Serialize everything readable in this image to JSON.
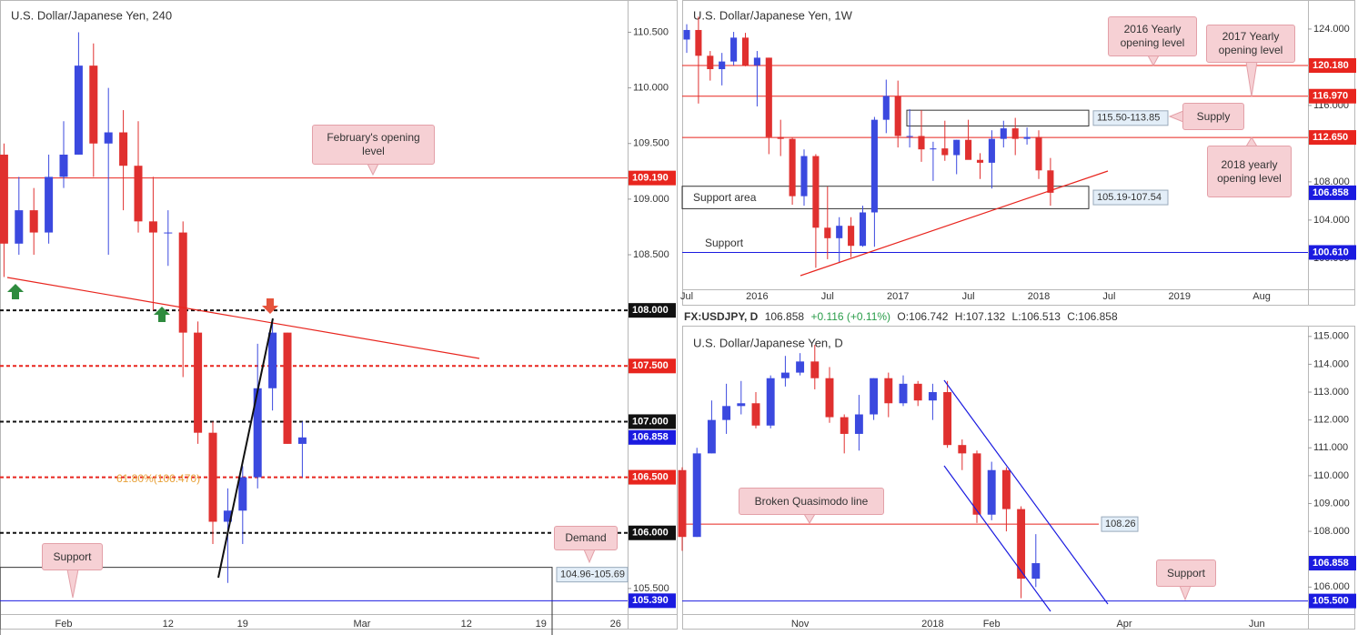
{
  "legend_bar": {
    "symbol": "FX:USDJPY, D",
    "price": "106.858",
    "change": "+0.116 (+0.11%)",
    "open": "O:106.742",
    "high": "H:107.132",
    "low": "L:106.513",
    "close": "C:106.858"
  },
  "chart_data": [
    {
      "type": "candlestick",
      "title": "U.S. Dollar/Japanese Yen, 240",
      "up_color": "#3b49df",
      "down_color": "#e0302f",
      "grid": false,
      "categories": [
        null,
        null,
        null,
        null,
        "Feb",
        null,
        null,
        null,
        null,
        null,
        null,
        "12",
        null,
        null,
        null,
        null,
        "19",
        null,
        null,
        null,
        null,
        null,
        null,
        null,
        "Mar",
        null,
        null,
        null,
        null,
        null,
        null,
        "12",
        null,
        null,
        null,
        null,
        "19",
        null,
        null,
        null,
        null,
        "26"
      ],
      "open": [
        109.4,
        108.6,
        108.9,
        108.7,
        109.2,
        109.4,
        110.2,
        109.5,
        109.6,
        109.3,
        108.8,
        108.7,
        108.7,
        107.8,
        106.9,
        106.1,
        106.2,
        106.5,
        107.3,
        107.8,
        106.8,
        null,
        null,
        null,
        null,
        null,
        null,
        null,
        null,
        null,
        null,
        null,
        null,
        null,
        null,
        null,
        null,
        null,
        null,
        null,
        null,
        null
      ],
      "high": [
        109.5,
        109.2,
        109.1,
        109.4,
        109.7,
        110.5,
        110.4,
        110.0,
        109.8,
        109.7,
        109.2,
        108.9,
        108.8,
        107.9,
        107.0,
        106.4,
        106.6,
        107.7,
        107.9,
        107.8,
        107.0,
        null,
        null,
        null,
        null,
        null,
        null,
        null,
        null,
        null,
        null,
        null,
        null,
        null,
        null,
        null,
        null,
        null,
        null,
        null,
        null,
        null
      ],
      "low": [
        108.3,
        108.5,
        108.5,
        108.6,
        109.1,
        109.4,
        109.2,
        108.5,
        108.9,
        108.7,
        108.0,
        108.4,
        107.4,
        106.8,
        105.9,
        105.55,
        105.9,
        106.4,
        107.1,
        106.8,
        106.5,
        null,
        null,
        null,
        null,
        null,
        null,
        null,
        null,
        null,
        null,
        null,
        null,
        null,
        null,
        null,
        null,
        null,
        null,
        null,
        null,
        null
      ],
      "close": [
        108.6,
        108.9,
        108.7,
        109.2,
        109.4,
        110.2,
        109.5,
        109.6,
        109.3,
        108.8,
        108.7,
        108.7,
        107.8,
        106.9,
        106.1,
        106.2,
        106.5,
        107.3,
        107.8,
        106.8,
        106.858,
        null,
        null,
        null,
        null,
        null,
        null,
        null,
        null,
        null,
        null,
        null,
        null,
        null,
        null,
        null,
        null,
        null,
        null,
        null,
        null,
        null
      ],
      "ylim": [
        105.27,
        110.79
      ],
      "yticks": [
        {
          "value": 110.5,
          "label": "110.500"
        },
        {
          "value": 110,
          "label": "110.000"
        },
        {
          "value": 109.5,
          "label": "109.500"
        },
        {
          "value": 109,
          "label": "109.000"
        },
        {
          "value": 108.5,
          "label": "108.500"
        },
        {
          "value": 105.5,
          "label": "105.500"
        }
      ],
      "levels": [
        {
          "value": 109.19,
          "label": "109.190",
          "color": "#e8251e",
          "style": "solid"
        },
        {
          "value": 108,
          "label": "108.000",
          "color": "#111111",
          "style": "dashed"
        },
        {
          "value": 107.5,
          "label": "107.500",
          "color": "#e8251e",
          "style": "dashed"
        },
        {
          "value": 107,
          "label": "107.000",
          "color": "#111111",
          "style": "dashed"
        },
        {
          "value": 106.858,
          "label": "106.858",
          "color": "#1b1be0",
          "style": "none"
        },
        {
          "value": 106.5,
          "label": "106.500",
          "color": "#e8251e",
          "style": "dashed"
        },
        {
          "value": 106,
          "label": "106.000",
          "color": "#111111",
          "style": "dashed"
        },
        {
          "value": 105.39,
          "label": "105.390",
          "color": "#1b1be0",
          "style": "solid"
        }
      ],
      "zones": [
        {
          "low": 104.96,
          "high": 105.69,
          "label": "104.96-105.69"
        }
      ],
      "fib_label": "61.80%(106.470)",
      "annotations": [
        "February's opening level",
        "Demand",
        "Support"
      ]
    },
    {
      "type": "candlestick",
      "title": "U.S. Dollar/Japanese Yen, 1W",
      "up_color": "#3b49df",
      "down_color": "#e0302f",
      "grid": false,
      "categories": [
        "Jul",
        null,
        null,
        null,
        null,
        null,
        "2016",
        null,
        null,
        null,
        null,
        null,
        "Jul",
        null,
        null,
        null,
        null,
        null,
        "2017",
        null,
        null,
        null,
        null,
        null,
        "Jul",
        null,
        null,
        null,
        null,
        null,
        "2018",
        null,
        null,
        null,
        null,
        null,
        "Jul",
        null,
        null,
        null,
        null,
        null,
        "2019",
        null,
        null,
        null,
        null,
        null,
        null,
        "Aug"
      ],
      "open": [
        122.9,
        123.9,
        121.2,
        119.8,
        120.6,
        123.1,
        120.2,
        121.0,
        112.7,
        112.5,
        106.5,
        110.7,
        103.2,
        102.1,
        103.4,
        101.3,
        104.8,
        114.5,
        117.0,
        112.8,
        112.8,
        111.4,
        111.5,
        110.8,
        112.4,
        110.3,
        110.0,
        112.5,
        113.6,
        112.5,
        112.7,
        109.2,
        null,
        null,
        null,
        null,
        null,
        null,
        null,
        null,
        null,
        null,
        null,
        null,
        null,
        null,
        null,
        null,
        null,
        null
      ],
      "high": [
        124.5,
        125.3,
        121.7,
        121.5,
        123.7,
        123.6,
        121.7,
        121.0,
        114.5,
        112.6,
        111.4,
        110.9,
        107.5,
        104.3,
        104.3,
        105.5,
        114.8,
        118.7,
        118.6,
        115.6,
        115.5,
        112.2,
        114.4,
        112.4,
        114.5,
        111.0,
        113.4,
        114.4,
        114.7,
        113.7,
        113.4,
        110.5,
        null,
        null,
        null,
        null,
        null,
        null,
        null,
        null,
        null,
        null,
        null,
        null,
        null,
        null,
        null,
        null,
        null,
        null
      ],
      "low": [
        121.5,
        116.2,
        118.6,
        118.1,
        120.2,
        120.1,
        115.9,
        110.9,
        110.7,
        105.6,
        105.5,
        99.0,
        99.9,
        99.5,
        100.1,
        101.2,
        101.2,
        113.1,
        111.6,
        111.6,
        110.1,
        108.1,
        110.2,
        108.8,
        110.6,
        108.3,
        107.3,
        111.6,
        110.8,
        111.9,
        108.3,
        105.5,
        null,
        null,
        null,
        null,
        null,
        null,
        null,
        null,
        null,
        null,
        null,
        null,
        null,
        null,
        null,
        null,
        null,
        null
      ],
      "close": [
        123.9,
        121.2,
        119.8,
        120.6,
        123.1,
        120.2,
        121.0,
        112.7,
        112.5,
        106.5,
        110.7,
        103.2,
        102.1,
        103.4,
        101.3,
        104.8,
        114.5,
        117.0,
        112.8,
        112.8,
        111.4,
        111.5,
        110.8,
        112.4,
        110.3,
        110.0,
        112.5,
        113.6,
        112.5,
        112.7,
        109.2,
        106.858,
        null,
        null,
        null,
        null,
        null,
        null,
        null,
        null,
        null,
        null,
        null,
        null,
        null,
        null,
        null,
        null,
        null,
        null
      ],
      "ylim": [
        96.75,
        127.04
      ],
      "yticks": [
        {
          "value": 124,
          "label": "124.000"
        },
        {
          "value": 116,
          "label": "116.000"
        },
        {
          "value": 108,
          "label": "108.000"
        },
        {
          "value": 104,
          "label": "104.000"
        },
        {
          "value": 100,
          "label": "100.000"
        }
      ],
      "levels": [
        {
          "value": 120.18,
          "label": "120.180",
          "color": "#e8251e",
          "style": "solid"
        },
        {
          "value": 116.97,
          "label": "116.970",
          "color": "#e8251e",
          "style": "solid"
        },
        {
          "value": 112.65,
          "label": "112.650",
          "color": "#e8251e",
          "style": "solid"
        },
        {
          "value": 106.858,
          "label": "106.858",
          "color": "#1b1be0",
          "style": "none"
        },
        {
          "value": 100.61,
          "label": "100.610",
          "color": "#1b1be0",
          "style": "solid"
        }
      ],
      "zones": [
        {
          "low": 113.85,
          "high": 115.5,
          "label": "115.50-113.85"
        },
        {
          "low": 105.19,
          "high": 107.54,
          "label": "105.19-107.54"
        }
      ],
      "annotations": [
        "2016 Yearly opening level",
        "2017 Yearly opening level",
        "Supply",
        "2018 yearly opening level",
        "Support area",
        "Support"
      ]
    },
    {
      "type": "candlestick",
      "title": "U.S. Dollar/Japanese Yen, D",
      "up_color": "#3b49df",
      "down_color": "#e0302f",
      "grid": false,
      "categories": [
        null,
        null,
        null,
        null,
        null,
        null,
        null,
        null,
        "Nov",
        null,
        null,
        null,
        null,
        null,
        null,
        null,
        null,
        "2018",
        null,
        null,
        null,
        "Feb",
        null,
        null,
        null,
        null,
        null,
        null,
        null,
        null,
        "Apr",
        null,
        null,
        null,
        null,
        null,
        null,
        null,
        null,
        "Jun",
        null,
        null,
        null
      ],
      "open": [
        110.2,
        107.8,
        110.8,
        112.0,
        112.5,
        112.6,
        111.8,
        113.5,
        113.7,
        114.1,
        113.5,
        112.1,
        111.5,
        112.2,
        113.5,
        112.6,
        113.3,
        112.7,
        113.0,
        111.1,
        110.8,
        108.6,
        110.2,
        108.8,
        106.3,
        null,
        null,
        null,
        null,
        null,
        null,
        null,
        null,
        null,
        null,
        null,
        null,
        null,
        null,
        null,
        null,
        null,
        null
      ],
      "high": [
        110.3,
        111.0,
        112.7,
        113.3,
        113.4,
        113.0,
        113.6,
        114.3,
        114.4,
        114.7,
        113.9,
        112.2,
        112.9,
        113.5,
        113.7,
        113.6,
        113.4,
        113.3,
        113.4,
        111.3,
        110.9,
        110.5,
        110.3,
        108.9,
        107.9,
        null,
        null,
        null,
        null,
        null,
        null,
        null,
        null,
        null,
        null,
        null,
        null,
        null,
        null,
        null,
        null,
        null,
        null
      ],
      "low": [
        107.3,
        107.8,
        110.8,
        111.5,
        112.2,
        111.7,
        111.7,
        113.2,
        113.6,
        113.1,
        111.9,
        110.8,
        110.9,
        112.0,
        112.1,
        112.5,
        112.5,
        112.0,
        111.0,
        110.2,
        108.3,
        108.4,
        108.0,
        105.6,
        106.0,
        null,
        null,
        null,
        null,
        null,
        null,
        null,
        null,
        null,
        null,
        null,
        null,
        null,
        null,
        null,
        null,
        null,
        null
      ],
      "close": [
        107.8,
        110.8,
        112.0,
        112.5,
        112.6,
        111.8,
        113.5,
        113.7,
        114.1,
        113.5,
        112.1,
        111.5,
        112.2,
        113.5,
        112.6,
        113.3,
        112.7,
        113.0,
        111.1,
        110.8,
        108.6,
        110.2,
        108.8,
        106.3,
        106.858,
        null,
        null,
        null,
        null,
        null,
        null,
        null,
        null,
        null,
        null,
        null,
        null,
        null,
        null,
        null,
        null,
        null,
        null
      ],
      "ylim": [
        105.03,
        115.32
      ],
      "yticks": [
        {
          "value": 115,
          "label": "115.000"
        },
        {
          "value": 114,
          "label": "114.000"
        },
        {
          "value": 113,
          "label": "113.000"
        },
        {
          "value": 112,
          "label": "112.000"
        },
        {
          "value": 111,
          "label": "111.000"
        },
        {
          "value": 110,
          "label": "110.000"
        },
        {
          "value": 109,
          "label": "109.000"
        },
        {
          "value": 108,
          "label": "108.000"
        },
        {
          "value": 106,
          "label": "106.000"
        }
      ],
      "levels": [
        {
          "value": 108.26,
          "label": "108.26",
          "color": "#e8251e",
          "style": "solid",
          "label_style": "inline"
        },
        {
          "value": 106.858,
          "label": "106.858",
          "color": "#1b1be0",
          "style": "none"
        },
        {
          "value": 105.5,
          "label": "105.500",
          "color": "#1b1be0",
          "style": "solid"
        }
      ],
      "zones": [],
      "annotations": [
        "Broken Quasimodo line",
        "Support"
      ]
    }
  ]
}
